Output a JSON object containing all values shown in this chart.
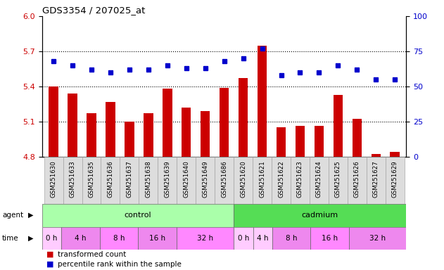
{
  "title": "GDS3354 / 207025_at",
  "samples": [
    "GSM251630",
    "GSM251633",
    "GSM251635",
    "GSM251636",
    "GSM251637",
    "GSM251638",
    "GSM251639",
    "GSM251640",
    "GSM251649",
    "GSM251686",
    "GSM251620",
    "GSM251621",
    "GSM251622",
    "GSM251623",
    "GSM251624",
    "GSM251625",
    "GSM251626",
    "GSM251627",
    "GSM251629"
  ],
  "bar_values": [
    5.4,
    5.34,
    5.17,
    5.27,
    5.1,
    5.17,
    5.38,
    5.22,
    5.19,
    5.39,
    5.47,
    5.75,
    5.05,
    5.06,
    5.06,
    5.33,
    5.12,
    4.82,
    4.84
  ],
  "dot_values": [
    68,
    65,
    62,
    60,
    62,
    62,
    65,
    63,
    63,
    68,
    70,
    77,
    58,
    60,
    60,
    65,
    62,
    55,
    55
  ],
  "bar_color": "#cc0000",
  "dot_color": "#0000cc",
  "ylim_left": [
    4.8,
    6.0
  ],
  "ylim_right": [
    0,
    100
  ],
  "yticks_left": [
    4.8,
    5.1,
    5.4,
    5.7,
    6.0
  ],
  "yticks_right": [
    0,
    25,
    50,
    75,
    100
  ],
  "hlines": [
    5.1,
    5.4,
    5.7
  ],
  "agent_groups": [
    {
      "label": "control",
      "start": 0,
      "end": 10,
      "color": "#aaffaa"
    },
    {
      "label": "cadmium",
      "start": 10,
      "end": 19,
      "color": "#55dd55"
    }
  ],
  "time_groups": [
    {
      "label": "0 h",
      "start": 0,
      "end": 1,
      "color": "#ffccff"
    },
    {
      "label": "4 h",
      "start": 1,
      "end": 3,
      "color": "#ee88ee"
    },
    {
      "label": "8 h",
      "start": 3,
      "end": 5,
      "color": "#ff88ff"
    },
    {
      "label": "16 h",
      "start": 5,
      "end": 7,
      "color": "#ee88ee"
    },
    {
      "label": "32 h",
      "start": 7,
      "end": 10,
      "color": "#ff88ff"
    },
    {
      "label": "0 h",
      "start": 10,
      "end": 11,
      "color": "#ffccff"
    },
    {
      "label": "4 h",
      "start": 11,
      "end": 12,
      "color": "#ffccff"
    },
    {
      "label": "8 h",
      "start": 12,
      "end": 14,
      "color": "#ee88ee"
    },
    {
      "label": "16 h",
      "start": 14,
      "end": 16,
      "color": "#ff88ff"
    },
    {
      "label": "32 h",
      "start": 16,
      "end": 19,
      "color": "#ee88ee"
    }
  ],
  "legend_items": [
    {
      "label": "transformed count",
      "color": "#cc0000"
    },
    {
      "label": "percentile rank within the sample",
      "color": "#0000cc"
    }
  ],
  "tick_label_color_left": "#cc0000",
  "tick_label_color_right": "#0000cc",
  "plot_bg": "#ffffff"
}
